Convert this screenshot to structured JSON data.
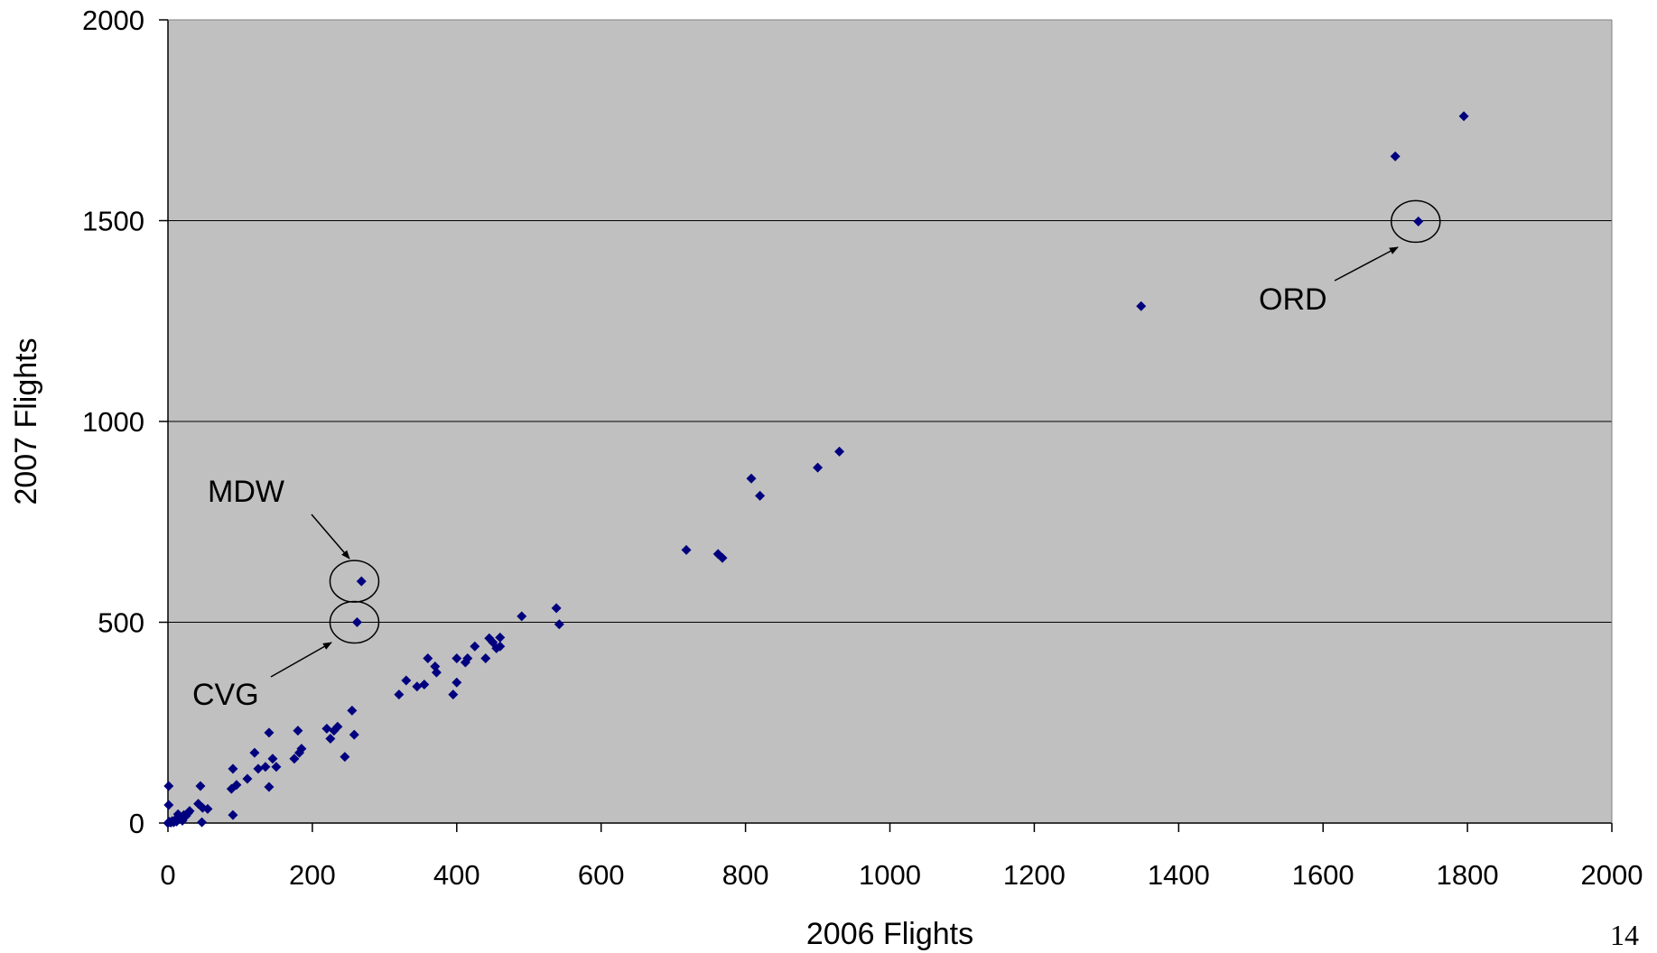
{
  "page_number": "14",
  "chart_data": {
    "type": "scatter",
    "title": "",
    "xlabel": "2006 Flights",
    "ylabel": "2007 Flights",
    "xlim": [
      0,
      2000
    ],
    "ylim": [
      0,
      2000
    ],
    "xticks": [
      0,
      200,
      400,
      600,
      800,
      1000,
      1200,
      1400,
      1600,
      1800,
      2000
    ],
    "yticks": [
      0,
      500,
      1000,
      1500,
      2000
    ],
    "grid": "horizontal",
    "legend": "none",
    "plot_background": "#c0c0c0",
    "marker_color": "#00007f",
    "marker": "diamond",
    "points": [
      [
        0,
        0
      ],
      [
        2,
        3
      ],
      [
        4,
        1
      ],
      [
        6,
        5
      ],
      [
        8,
        2
      ],
      [
        10,
        8
      ],
      [
        12,
        4
      ],
      [
        15,
        10
      ],
      [
        18,
        14
      ],
      [
        20,
        6
      ],
      [
        22,
        20
      ],
      [
        25,
        18
      ],
      [
        28,
        25
      ],
      [
        30,
        30
      ],
      [
        14,
        22
      ],
      [
        1,
        45
      ],
      [
        1,
        92
      ],
      [
        45,
        92
      ],
      [
        42,
        48
      ],
      [
        48,
        38
      ],
      [
        47,
        2
      ],
      [
        55,
        35
      ],
      [
        90,
        20
      ],
      [
        88,
        85
      ],
      [
        90,
        135
      ],
      [
        95,
        95
      ],
      [
        110,
        110
      ],
      [
        120,
        175
      ],
      [
        125,
        135
      ],
      [
        135,
        140
      ],
      [
        140,
        90
      ],
      [
        140,
        225
      ],
      [
        145,
        160
      ],
      [
        150,
        140
      ],
      [
        175,
        160
      ],
      [
        180,
        230
      ],
      [
        182,
        175
      ],
      [
        185,
        185
      ],
      [
        220,
        235
      ],
      [
        225,
        210
      ],
      [
        230,
        230
      ],
      [
        235,
        240
      ],
      [
        245,
        165
      ],
      [
        255,
        280
      ],
      [
        258,
        220
      ],
      [
        262,
        500
      ],
      [
        268,
        602
      ],
      [
        320,
        320
      ],
      [
        330,
        355
      ],
      [
        345,
        340
      ],
      [
        355,
        345
      ],
      [
        360,
        410
      ],
      [
        370,
        390
      ],
      [
        372,
        375
      ],
      [
        395,
        320
      ],
      [
        400,
        410
      ],
      [
        400,
        350
      ],
      [
        412,
        400
      ],
      [
        415,
        410
      ],
      [
        425,
        440
      ],
      [
        440,
        410
      ],
      [
        445,
        460
      ],
      [
        450,
        450
      ],
      [
        455,
        435
      ],
      [
        460,
        440
      ],
      [
        460,
        462
      ],
      [
        490,
        515
      ],
      [
        538,
        535
      ],
      [
        542,
        495
      ],
      [
        718,
        680
      ],
      [
        762,
        670
      ],
      [
        768,
        660
      ],
      [
        808,
        858
      ],
      [
        820,
        815
      ],
      [
        900,
        885
      ],
      [
        930,
        925
      ],
      [
        1348,
        1287
      ],
      [
        1700,
        1660
      ],
      [
        1732,
        1498
      ],
      [
        1795,
        1760
      ]
    ],
    "annotations": [
      {
        "label": "MDW",
        "x": 262,
        "y": 602
      },
      {
        "label": "CVG",
        "x": 262,
        "y": 500
      },
      {
        "label": "ORD",
        "x": 1732,
        "y": 1498
      }
    ]
  }
}
